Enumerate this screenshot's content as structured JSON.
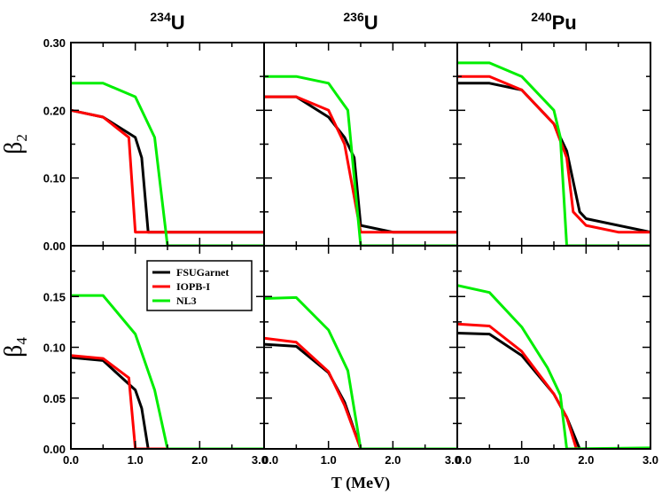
{
  "chart_data": {
    "type": "line",
    "x_label": "T (MeV)",
    "x_ticks": [
      "0.0",
      "1.0",
      "2.0",
      "3.0"
    ],
    "x_ticks_last_panel": [
      "0.0",
      "1.0",
      "2.0",
      "3.0"
    ],
    "xlim": [
      0,
      3
    ],
    "colors": {
      "FSUGarnet": "#000000",
      "IOPB-I": "#ff0000",
      "NL3": "#00ee00"
    },
    "legend": [
      {
        "name": "FSUGarnet",
        "color": "#000000"
      },
      {
        "name": "IOPB-I",
        "color": "#ff0000"
      },
      {
        "name": "NL3",
        "color": "#00ee00"
      }
    ],
    "columns": [
      {
        "mass": "234",
        "element": "U"
      },
      {
        "mass": "236",
        "element": "U"
      },
      {
        "mass": "240",
        "element": "Pu"
      }
    ],
    "rows": [
      {
        "ylabel_main": "β",
        "ylabel_sub": "2",
        "ylim": [
          0,
          0.3
        ],
        "y_ticks": [
          "0.00",
          "0.10",
          "0.20",
          "0.30"
        ],
        "y_tick_values": [
          0,
          0.1,
          0.2,
          0.3
        ]
      },
      {
        "ylabel_main": "β",
        "ylabel_sub": "4",
        "ylim": [
          0,
          0.2
        ],
        "y_ticks": [
          "0.00",
          "0.05",
          "0.10",
          "0.15"
        ],
        "y_tick_values": [
          0,
          0.05,
          0.1,
          0.15
        ]
      }
    ],
    "panels": [
      {
        "row": 0,
        "col": 0,
        "series": [
          {
            "name": "FSUGarnet",
            "x": [
              0,
              0.5,
              1.0,
              1.1,
              1.2,
              1.2,
              3.0
            ],
            "y": [
              0.2,
              0.19,
              0.16,
              0.13,
              0.02,
              0.02,
              0.02
            ]
          },
          {
            "name": "IOPB-I",
            "x": [
              0,
              0.5,
              0.9,
              1.0,
              3.0
            ],
            "y": [
              0.2,
              0.19,
              0.16,
              0.02,
              0.02
            ]
          },
          {
            "name": "NL3",
            "x": [
              0,
              0.5,
              1.0,
              1.3,
              1.5,
              3.0
            ],
            "y": [
              0.24,
              0.24,
              0.22,
              0.16,
              0.0,
              0.0
            ]
          }
        ]
      },
      {
        "row": 0,
        "col": 1,
        "series": [
          {
            "name": "FSUGarnet",
            "x": [
              0,
              0.5,
              1.0,
              1.25,
              1.4,
              1.5,
              2.0,
              3.0
            ],
            "y": [
              0.22,
              0.22,
              0.19,
              0.16,
              0.13,
              0.03,
              0.02,
              0.02
            ]
          },
          {
            "name": "IOPB-I",
            "x": [
              0,
              0.5,
              1.0,
              1.25,
              1.5,
              2.0,
              3.0
            ],
            "y": [
              0.22,
              0.22,
              0.2,
              0.15,
              0.02,
              0.02,
              0.02
            ]
          },
          {
            "name": "NL3",
            "x": [
              0,
              0.5,
              1.0,
              1.15,
              1.3,
              1.5,
              3.0
            ],
            "y": [
              0.25,
              0.25,
              0.24,
              0.22,
              0.2,
              0.0,
              0.0
            ]
          }
        ]
      },
      {
        "row": 0,
        "col": 2,
        "series": [
          {
            "name": "FSUGarnet",
            "x": [
              0,
              0.5,
              1.0,
              1.5,
              1.7,
              1.9,
              2.0,
              3.0
            ],
            "y": [
              0.24,
              0.24,
              0.23,
              0.18,
              0.14,
              0.05,
              0.04,
              0.02
            ]
          },
          {
            "name": "IOPB-I",
            "x": [
              0,
              0.5,
              1.0,
              1.5,
              1.7,
              1.8,
              2.0,
              2.5,
              3.0
            ],
            "y": [
              0.25,
              0.25,
              0.23,
              0.18,
              0.13,
              0.05,
              0.03,
              0.02,
              0.02
            ]
          },
          {
            "name": "NL3",
            "x": [
              0,
              0.5,
              1.0,
              1.5,
              1.6,
              1.7,
              3.0
            ],
            "y": [
              0.27,
              0.27,
              0.25,
              0.2,
              0.16,
              0.0,
              0.0
            ]
          }
        ]
      },
      {
        "row": 1,
        "col": 0,
        "series": [
          {
            "name": "FSUGarnet",
            "x": [
              0,
              0.5,
              1.0,
              1.1,
              1.2,
              3.0
            ],
            "y": [
              0.09,
              0.087,
              0.058,
              0.04,
              0.0,
              0.0
            ]
          },
          {
            "name": "IOPB-I",
            "x": [
              0,
              0.5,
              0.9,
              1.0,
              3.0
            ],
            "y": [
              0.092,
              0.089,
              0.07,
              0.0,
              0.0
            ]
          },
          {
            "name": "NL3",
            "x": [
              0,
              0.5,
              1.0,
              1.3,
              1.5,
              3.0
            ],
            "y": [
              0.151,
              0.151,
              0.113,
              0.058,
              0.0,
              0.0
            ]
          }
        ]
      },
      {
        "row": 1,
        "col": 1,
        "series": [
          {
            "name": "FSUGarnet",
            "x": [
              0,
              0.5,
              1.0,
              1.25,
              1.5,
              3.0
            ],
            "y": [
              0.103,
              0.101,
              0.075,
              0.046,
              0.0,
              0.0
            ]
          },
          {
            "name": "IOPB-I",
            "x": [
              0,
              0.5,
              1.0,
              1.25,
              1.5,
              3.0
            ],
            "y": [
              0.109,
              0.105,
              0.076,
              0.043,
              0.0,
              0.0
            ]
          },
          {
            "name": "NL3",
            "x": [
              0,
              0.5,
              1.0,
              1.3,
              1.5,
              3.0
            ],
            "y": [
              0.148,
              0.149,
              0.117,
              0.077,
              0.0,
              0.0
            ]
          }
        ]
      },
      {
        "row": 1,
        "col": 2,
        "series": [
          {
            "name": "FSUGarnet",
            "x": [
              0,
              0.5,
              1.0,
              1.5,
              1.7,
              1.9,
              3.0
            ],
            "y": [
              0.114,
              0.113,
              0.092,
              0.054,
              0.031,
              0.0,
              0.0
            ]
          },
          {
            "name": "IOPB-I",
            "x": [
              0,
              0.5,
              1.0,
              1.5,
              1.7,
              1.85,
              3.0
            ],
            "y": [
              0.123,
              0.121,
              0.096,
              0.054,
              0.031,
              0.0,
              0.0
            ]
          },
          {
            "name": "NL3",
            "x": [
              0,
              0.5,
              1.0,
              1.4,
              1.6,
              1.7,
              3.0
            ],
            "y": [
              0.161,
              0.154,
              0.12,
              0.08,
              0.053,
              0.0,
              0.001
            ]
          }
        ]
      }
    ]
  }
}
